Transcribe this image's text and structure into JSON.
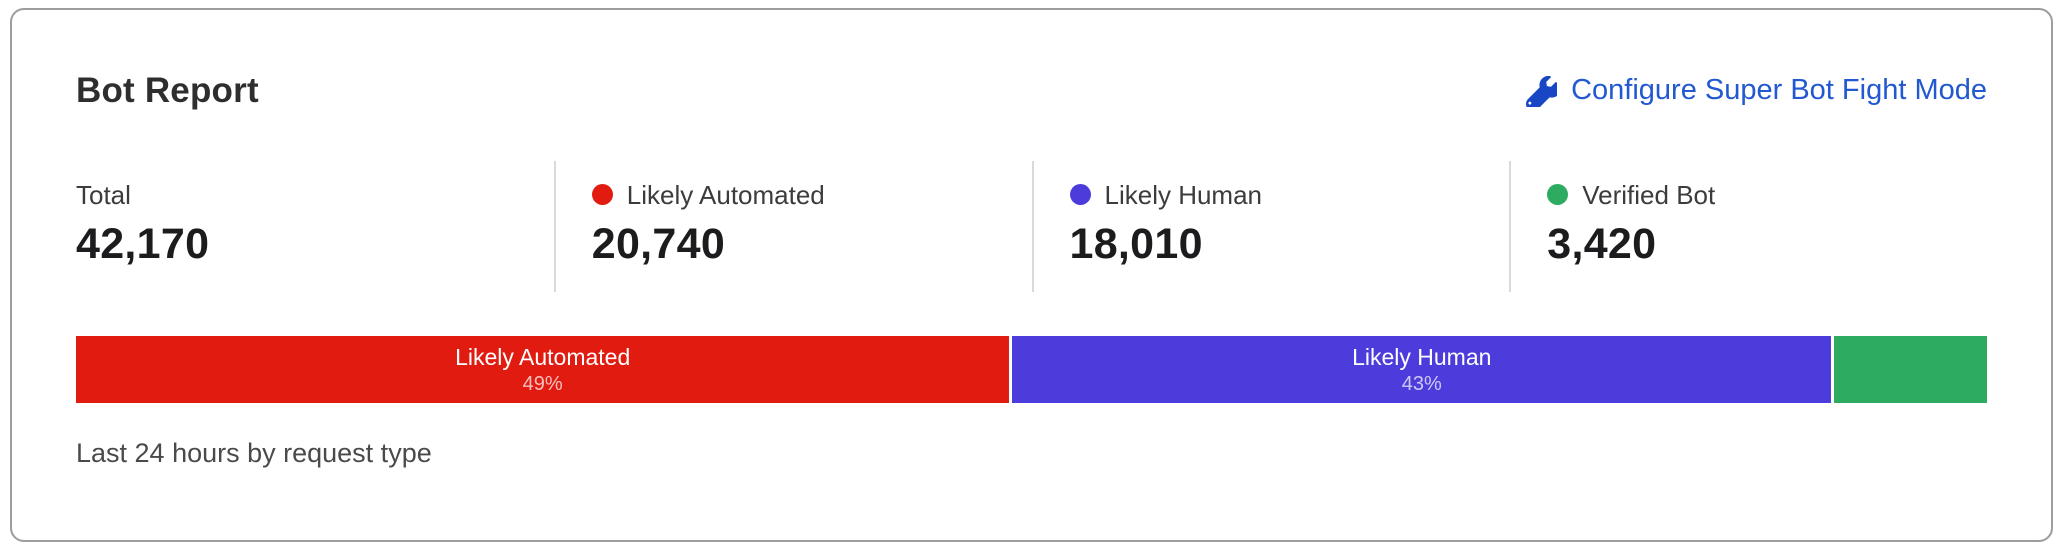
{
  "card": {
    "title": "Bot Report",
    "configure_link": {
      "label": "Configure Super Bot Fight Mode",
      "icon": "wrench-icon"
    },
    "caption": "Last 24 hours by request type"
  },
  "stats": [
    {
      "label": "Total",
      "value": "42,170",
      "color": null
    },
    {
      "label": "Likely Automated",
      "value": "20,740",
      "color": "#e11b10"
    },
    {
      "label": "Likely Human",
      "value": "18,010",
      "color": "#4b3cdb"
    },
    {
      "label": "Verified Bot",
      "value": "3,420",
      "color": "#2dab60"
    }
  ],
  "chart_data": {
    "type": "bar",
    "variant": "horizontal-stacked",
    "title": "Bot Report",
    "subtitle": "Last 24 hours by request type",
    "total": 42170,
    "categories": [
      "Likely Automated",
      "Likely Human",
      "Verified Bot"
    ],
    "values": [
      20740,
      18010,
      3420
    ],
    "percents": [
      49,
      43,
      8
    ],
    "percent_labels": [
      "49%",
      "43%",
      ""
    ],
    "colors": [
      "#e11b10",
      "#4b3cdb",
      "#2dab60"
    ],
    "segment_labels_visible": [
      true,
      true,
      false
    ],
    "legend_position": "above-as-stat-columns",
    "grid": false
  },
  "colors": {
    "link_blue": "#2258d0",
    "wrench_blue": "#1846c4",
    "card_border": "#9d9d9d",
    "divider": "#dadada",
    "red": "#e11b10",
    "indigo": "#4b3cdb",
    "green": "#2dab60"
  }
}
